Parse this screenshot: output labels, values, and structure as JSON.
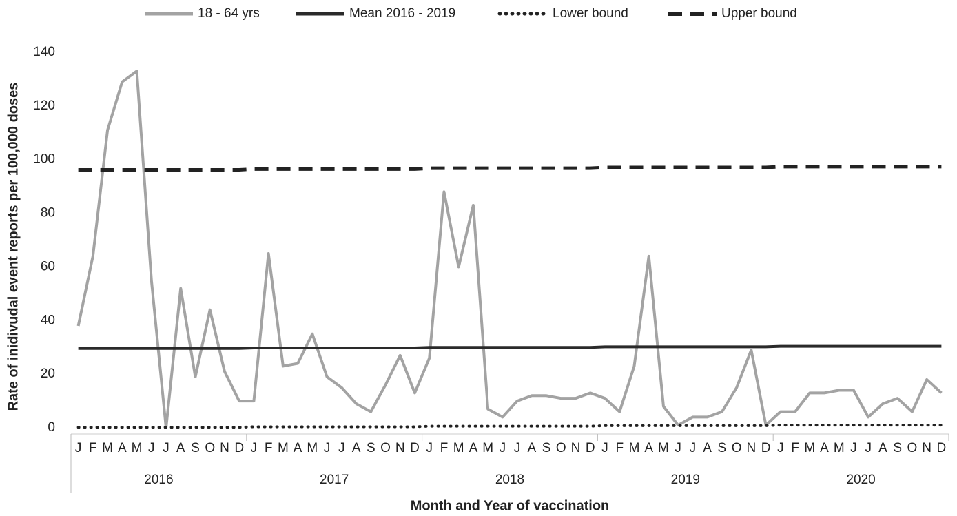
{
  "chart_data": {
    "type": "line",
    "x_label": "Month and Year of vaccination",
    "y_label": "Rate of inidivudal event reports per 100,000 doses",
    "categories": [
      "J",
      "F",
      "M",
      "A",
      "M",
      "J",
      "J",
      "A",
      "S",
      "O",
      "N",
      "D",
      "J",
      "F",
      "M",
      "A",
      "M",
      "J",
      "J",
      "A",
      "S",
      "O",
      "N",
      "D",
      "J",
      "F",
      "M",
      "A",
      "M",
      "J",
      "J",
      "A",
      "S",
      "O",
      "N",
      "D",
      "J",
      "F",
      "M",
      "A",
      "M",
      "J",
      "J",
      "A",
      "S",
      "O",
      "N",
      "D",
      "J",
      "F",
      "M",
      "A",
      "M",
      "J",
      "J",
      "A",
      "S",
      "O",
      "N",
      "D"
    ],
    "years": [
      "2016",
      "2017",
      "2018",
      "2019",
      "2020"
    ],
    "ylim": [
      0,
      140
    ],
    "yticks": [
      0,
      20,
      40,
      60,
      80,
      100,
      120,
      140
    ],
    "grid": false,
    "legend": "top",
    "series": [
      {
        "name": "18 - 64 yrs",
        "color": "#a3a3a3",
        "dash": "solid",
        "values": [
          38,
          64,
          111,
          129,
          133,
          55,
          0,
          52,
          19,
          44,
          21,
          10,
          10,
          65,
          23,
          24,
          35,
          19,
          15,
          9,
          6,
          16,
          27,
          13,
          26,
          88,
          60,
          83,
          7,
          4,
          10,
          12,
          12,
          11,
          11,
          13,
          11,
          6,
          23,
          64,
          8,
          1,
          4,
          4,
          6,
          15,
          29,
          1,
          6,
          6,
          13,
          13,
          14,
          14,
          4,
          9,
          11,
          6,
          18,
          13
        ]
      },
      {
        "name": "Mean 2016 - 2019",
        "color": "#2a2a2a",
        "dash": "solid",
        "values": [
          29.6,
          29.6,
          29.6,
          29.6,
          29.6,
          29.6,
          29.6,
          29.6,
          29.6,
          29.6,
          29.6,
          29.6,
          29.8,
          29.8,
          29.8,
          29.8,
          29.8,
          29.8,
          29.8,
          29.8,
          29.8,
          29.8,
          29.8,
          29.8,
          30,
          30,
          30,
          30,
          30,
          30,
          30,
          30,
          30,
          30,
          30,
          30,
          30.2,
          30.2,
          30.2,
          30.2,
          30.2,
          30.2,
          30.2,
          30.2,
          30.2,
          30.2,
          30.2,
          30.2,
          30.4,
          30.4,
          30.4,
          30.4,
          30.4,
          30.4,
          30.4,
          30.4,
          30.4,
          30.4,
          30.4,
          30.4
        ]
      },
      {
        "name": "Lower bound",
        "color": "#222222",
        "dash": "dotted",
        "values": [
          0.2,
          0.2,
          0.2,
          0.2,
          0.2,
          0.2,
          0.2,
          0.2,
          0.2,
          0.2,
          0.2,
          0.2,
          0.4,
          0.4,
          0.4,
          0.4,
          0.4,
          0.4,
          0.4,
          0.4,
          0.4,
          0.4,
          0.4,
          0.4,
          0.6,
          0.6,
          0.6,
          0.6,
          0.6,
          0.6,
          0.6,
          0.6,
          0.6,
          0.6,
          0.6,
          0.6,
          0.8,
          0.8,
          0.8,
          0.8,
          0.8,
          0.8,
          0.8,
          0.8,
          0.8,
          0.8,
          0.8,
          0.8,
          1,
          1,
          1,
          1,
          1,
          1,
          1,
          1,
          1,
          1,
          1,
          1
        ]
      },
      {
        "name": "Upper bound",
        "color": "#222222",
        "dash": "dashed",
        "values": [
          96.2,
          96.2,
          96.2,
          96.2,
          96.2,
          96.2,
          96.2,
          96.2,
          96.2,
          96.2,
          96.2,
          96.2,
          96.5,
          96.5,
          96.5,
          96.5,
          96.5,
          96.5,
          96.5,
          96.5,
          96.5,
          96.5,
          96.5,
          96.5,
          96.8,
          96.8,
          96.8,
          96.8,
          96.8,
          96.8,
          96.8,
          96.8,
          96.8,
          96.8,
          96.8,
          96.8,
          97.1,
          97.1,
          97.1,
          97.1,
          97.1,
          97.1,
          97.1,
          97.1,
          97.1,
          97.1,
          97.1,
          97.1,
          97.4,
          97.4,
          97.4,
          97.4,
          97.4,
          97.4,
          97.4,
          97.4,
          97.4,
          97.4,
          97.4,
          97.4
        ]
      }
    ]
  }
}
